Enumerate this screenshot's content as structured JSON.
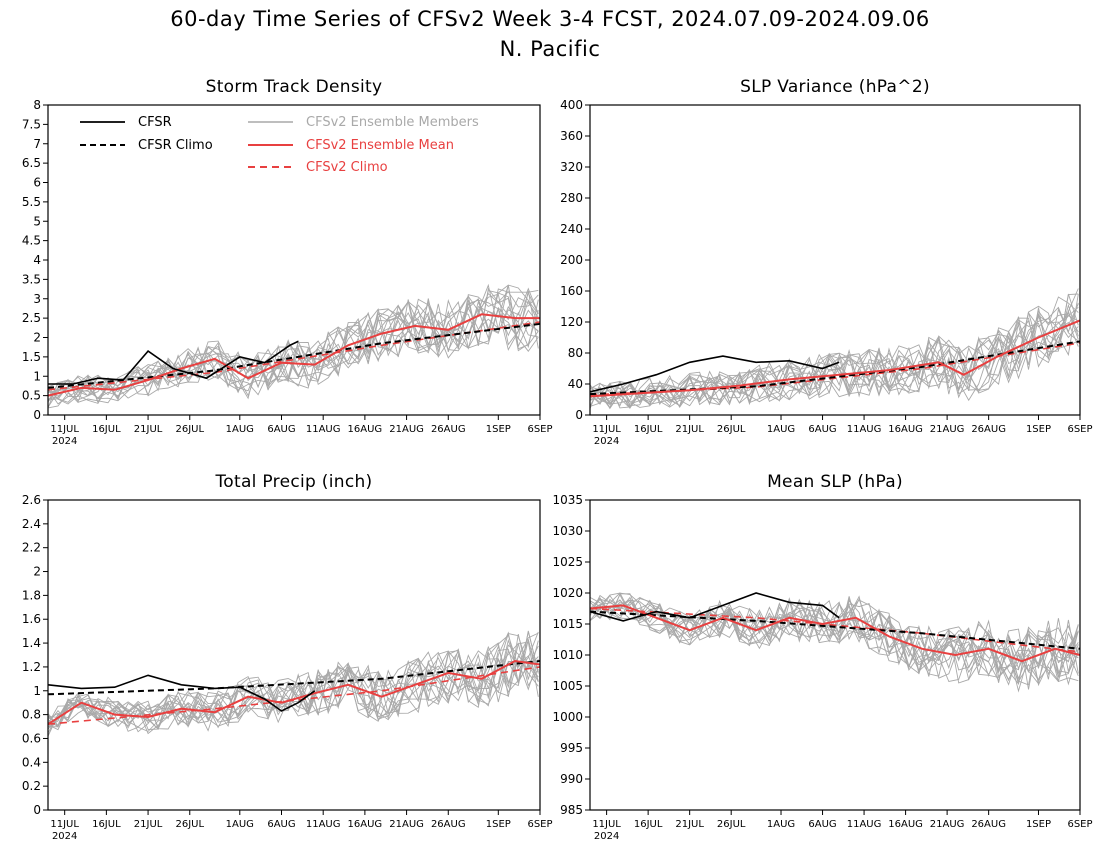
{
  "figure": {
    "title": "60-day Time Series of CFSv2 Week 3-4 FCST, 2024.07.09-2024.09.06",
    "subtitle": "N. Pacific"
  },
  "colors": {
    "cfsr": "#000000",
    "ensemble_members": "#a9a9a9",
    "ensemble_mean": "#e84040",
    "cfsv2_climo": "#e84040"
  },
  "legend": {
    "cfsr": "CFSR",
    "cfsr_climo": "CFSR Climo",
    "members": "CFSv2 Ensemble Members",
    "mean": "CFSv2 Ensemble Mean",
    "climo": "CFSv2 Climo"
  },
  "x_axis": {
    "start_date": "2024-07-09",
    "end_date": "2024-09-06",
    "tick_dates": [
      "2024-07-11",
      "2024-07-16",
      "2024-07-21",
      "2024-07-26",
      "2024-08-01",
      "2024-08-06",
      "2024-08-11",
      "2024-08-16",
      "2024-08-21",
      "2024-08-26",
      "2024-09-01",
      "2024-09-06"
    ],
    "tick_labels": [
      "11JUL",
      "16JUL",
      "21JUL",
      "26JUL",
      "1AUG",
      "6AUG",
      "11AUG",
      "16AUG",
      "21AUG",
      "26AUG",
      "1SEP",
      "6SEP"
    ],
    "year_label": "2024"
  },
  "chart_data": [
    {
      "type": "line",
      "title": "Storm Track Density",
      "ylim": [
        0,
        8
      ],
      "ytick_labels": [
        "0",
        "0.5",
        "1",
        "1.5",
        "2",
        "2.5",
        "3",
        "3.5",
        "4",
        "4.5",
        "5",
        "5.5",
        "6",
        "6.5",
        "7",
        "7.5",
        "8"
      ],
      "series": [
        {
          "name": "CFSR",
          "x": [
            "2024-07-09",
            "2024-07-12",
            "2024-07-15",
            "2024-07-18",
            "2024-07-21",
            "2024-07-24",
            "2024-07-28",
            "2024-08-01",
            "2024-08-04",
            "2024-08-07",
            "2024-08-08"
          ],
          "y": [
            0.8,
            0.8,
            0.95,
            0.9,
            1.65,
            1.2,
            0.95,
            1.5,
            1.35,
            1.8,
            1.9
          ]
        },
        {
          "name": "CFSR Climo",
          "x": [
            "2024-07-09",
            "2024-07-29",
            "2024-08-18",
            "2024-09-06"
          ],
          "y": [
            0.7,
            1.15,
            1.85,
            2.35
          ]
        },
        {
          "name": "CFSv2 Ensemble Mean",
          "x": [
            "2024-07-09",
            "2024-07-13",
            "2024-07-17",
            "2024-07-21",
            "2024-07-25",
            "2024-07-29",
            "2024-08-02",
            "2024-08-06",
            "2024-08-10",
            "2024-08-14",
            "2024-08-18",
            "2024-08-22",
            "2024-08-26",
            "2024-08-30",
            "2024-09-03",
            "2024-09-06"
          ],
          "y": [
            0.5,
            0.7,
            0.65,
            0.9,
            1.2,
            1.45,
            0.95,
            1.35,
            1.3,
            1.8,
            2.1,
            2.3,
            2.2,
            2.6,
            2.5,
            2.5
          ]
        },
        {
          "name": "CFSv2 Climo",
          "x": [
            "2024-07-09",
            "2024-07-29",
            "2024-08-18",
            "2024-09-06"
          ],
          "y": [
            0.65,
            1.1,
            1.8,
            2.4
          ]
        }
      ]
    },
    {
      "type": "line",
      "title": "SLP Variance (hPa^2)",
      "ylim": [
        0,
        400
      ],
      "ytick_labels": [
        "0",
        "40",
        "80",
        "120",
        "160",
        "200",
        "240",
        "280",
        "320",
        "360",
        "400"
      ],
      "series": [
        {
          "name": "CFSR",
          "x": [
            "2024-07-09",
            "2024-07-13",
            "2024-07-17",
            "2024-07-21",
            "2024-07-25",
            "2024-07-29",
            "2024-08-02",
            "2024-08-06",
            "2024-08-08"
          ],
          "y": [
            30,
            40,
            52,
            68,
            76,
            68,
            70,
            60,
            68
          ]
        },
        {
          "name": "CFSR Climo",
          "x": [
            "2024-07-09",
            "2024-07-29",
            "2024-08-18",
            "2024-09-06"
          ],
          "y": [
            27,
            37,
            62,
            95
          ]
        },
        {
          "name": "CFSv2 Ensemble Mean",
          "x": [
            "2024-07-09",
            "2024-07-15",
            "2024-07-21",
            "2024-07-27",
            "2024-08-02",
            "2024-08-08",
            "2024-08-14",
            "2024-08-20",
            "2024-08-23",
            "2024-08-27",
            "2024-09-01",
            "2024-09-06"
          ],
          "y": [
            24,
            28,
            32,
            38,
            46,
            52,
            58,
            68,
            52,
            75,
            100,
            122
          ]
        },
        {
          "name": "CFSv2 Climo",
          "x": [
            "2024-07-09",
            "2024-07-29",
            "2024-08-18",
            "2024-09-06"
          ],
          "y": [
            26,
            36,
            60,
            93
          ]
        }
      ]
    },
    {
      "type": "line",
      "title": "Total Precip (inch)",
      "ylim": [
        0,
        2.6
      ],
      "ytick_labels": [
        "0",
        "0.2",
        "0.4",
        "0.6",
        "0.8",
        "1",
        "1.2",
        "1.4",
        "1.6",
        "1.8",
        "2",
        "2.2",
        "2.4",
        "2.6"
      ],
      "series": [
        {
          "name": "CFSR",
          "x": [
            "2024-07-09",
            "2024-07-13",
            "2024-07-17",
            "2024-07-21",
            "2024-07-25",
            "2024-07-29",
            "2024-08-01",
            "2024-08-04",
            "2024-08-06",
            "2024-08-08",
            "2024-08-10"
          ],
          "y": [
            1.05,
            1.02,
            1.03,
            1.13,
            1.05,
            1.02,
            1.03,
            0.93,
            0.83,
            0.9,
            1.0
          ]
        },
        {
          "name": "CFSR Climo",
          "x": [
            "2024-07-09",
            "2024-07-29",
            "2024-08-18",
            "2024-09-06"
          ],
          "y": [
            0.97,
            1.02,
            1.1,
            1.25
          ]
        },
        {
          "name": "CFSv2 Ensemble Mean",
          "x": [
            "2024-07-09",
            "2024-07-13",
            "2024-07-17",
            "2024-07-21",
            "2024-07-25",
            "2024-07-29",
            "2024-08-02",
            "2024-08-06",
            "2024-08-10",
            "2024-08-14",
            "2024-08-18",
            "2024-08-22",
            "2024-08-26",
            "2024-08-30",
            "2024-09-03",
            "2024-09-06"
          ],
          "y": [
            0.72,
            0.9,
            0.8,
            0.78,
            0.85,
            0.82,
            0.95,
            0.9,
            0.98,
            1.05,
            0.95,
            1.05,
            1.15,
            1.1,
            1.25,
            1.22
          ]
        },
        {
          "name": "CFSv2 Climo",
          "x": [
            "2024-07-09",
            "2024-07-29",
            "2024-08-18",
            "2024-09-06"
          ],
          "y": [
            0.72,
            0.85,
            1.0,
            1.2
          ]
        }
      ]
    },
    {
      "type": "line",
      "title": "Mean SLP (hPa)",
      "ylim": [
        985,
        1035
      ],
      "ytick_labels": [
        "985",
        "990",
        "995",
        "1000",
        "1005",
        "1010",
        "1015",
        "1020",
        "1025",
        "1030",
        "1035"
      ],
      "series": [
        {
          "name": "CFSR",
          "x": [
            "2024-07-09",
            "2024-07-13",
            "2024-07-17",
            "2024-07-21",
            "2024-07-25",
            "2024-07-29",
            "2024-08-02",
            "2024-08-06",
            "2024-08-08"
          ],
          "y": [
            1017,
            1015.5,
            1017,
            1016,
            1018,
            1020,
            1018.5,
            1018,
            1016
          ]
        },
        {
          "name": "CFSR Climo",
          "x": [
            "2024-07-09",
            "2024-07-29",
            "2024-08-18",
            "2024-09-06"
          ],
          "y": [
            1017,
            1015.5,
            1013.5,
            1011
          ]
        },
        {
          "name": "CFSv2 Ensemble Mean",
          "x": [
            "2024-07-09",
            "2024-07-13",
            "2024-07-17",
            "2024-07-21",
            "2024-07-25",
            "2024-07-29",
            "2024-08-02",
            "2024-08-06",
            "2024-08-10",
            "2024-08-14",
            "2024-08-18",
            "2024-08-22",
            "2024-08-26",
            "2024-08-30",
            "2024-09-03",
            "2024-09-06"
          ],
          "y": [
            1017.5,
            1018,
            1016,
            1014,
            1016,
            1014,
            1016,
            1015,
            1016,
            1013,
            1011,
            1010,
            1011,
            1009,
            1011,
            1010
          ]
        },
        {
          "name": "CFSv2 Climo",
          "x": [
            "2024-07-09",
            "2024-07-29",
            "2024-08-18",
            "2024-09-06"
          ],
          "y": [
            1017.5,
            1016,
            1013.5,
            1010.5
          ]
        }
      ]
    }
  ]
}
